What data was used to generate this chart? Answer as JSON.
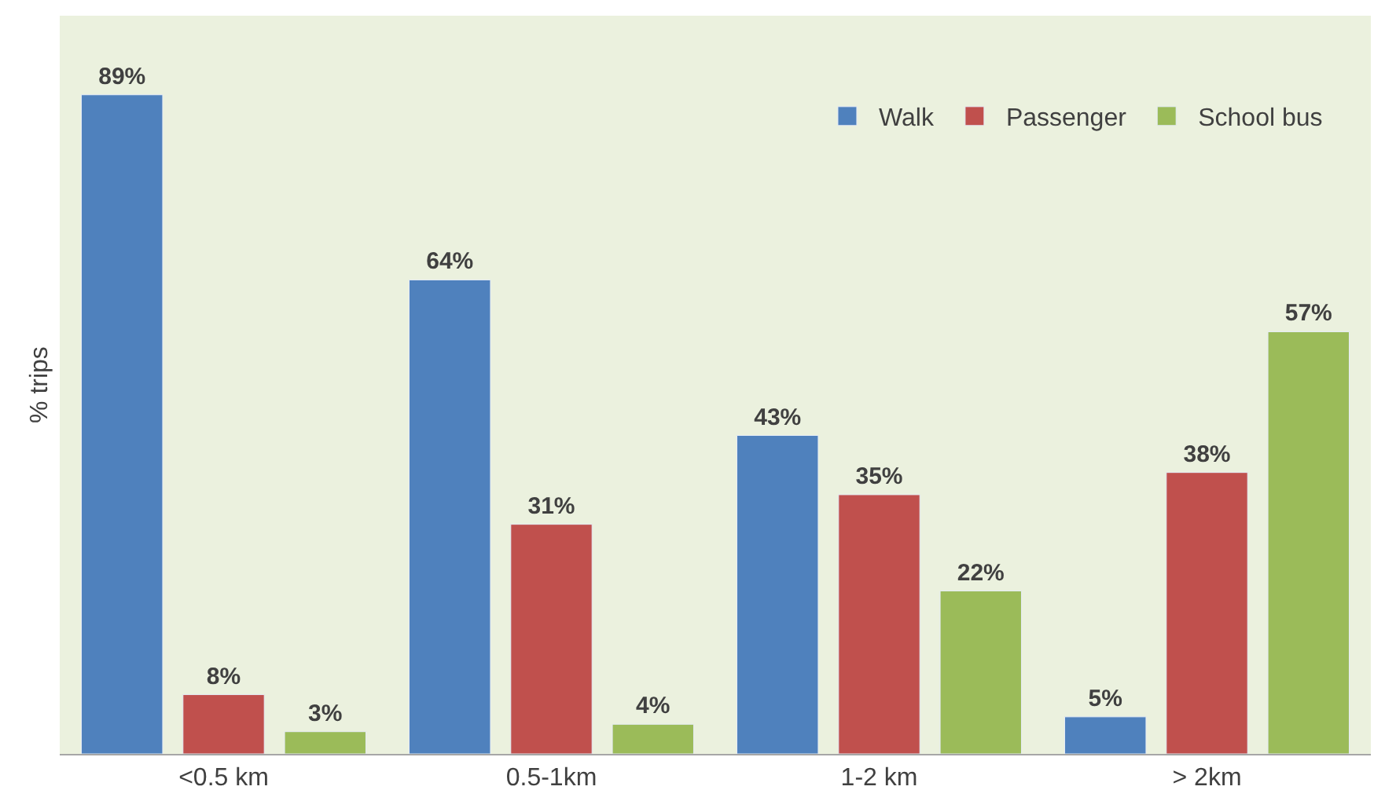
{
  "chart_data": {
    "type": "bar",
    "ylabel": "% trips",
    "categories": [
      "<0.5 km",
      "0.5-1km",
      "1-2 km",
      "> 2km"
    ],
    "series": [
      {
        "name": "Walk",
        "color": "#4f81bd",
        "values": [
          89,
          64,
          43,
          5
        ],
        "value_labels": [
          "89%",
          "64%",
          "43%",
          "5%"
        ]
      },
      {
        "name": "Passenger",
        "color": "#c0504d",
        "values": [
          8,
          31,
          35,
          38
        ],
        "value_labels": [
          "8%",
          "31%",
          "35%",
          "38%"
        ]
      },
      {
        "name": "School bus",
        "color": "#9bbb59",
        "values": [
          3,
          4,
          22,
          57
        ],
        "value_labels": [
          "3%",
          "4%",
          "22%",
          "57%"
        ]
      }
    ],
    "grid": false,
    "legend": "top right"
  }
}
